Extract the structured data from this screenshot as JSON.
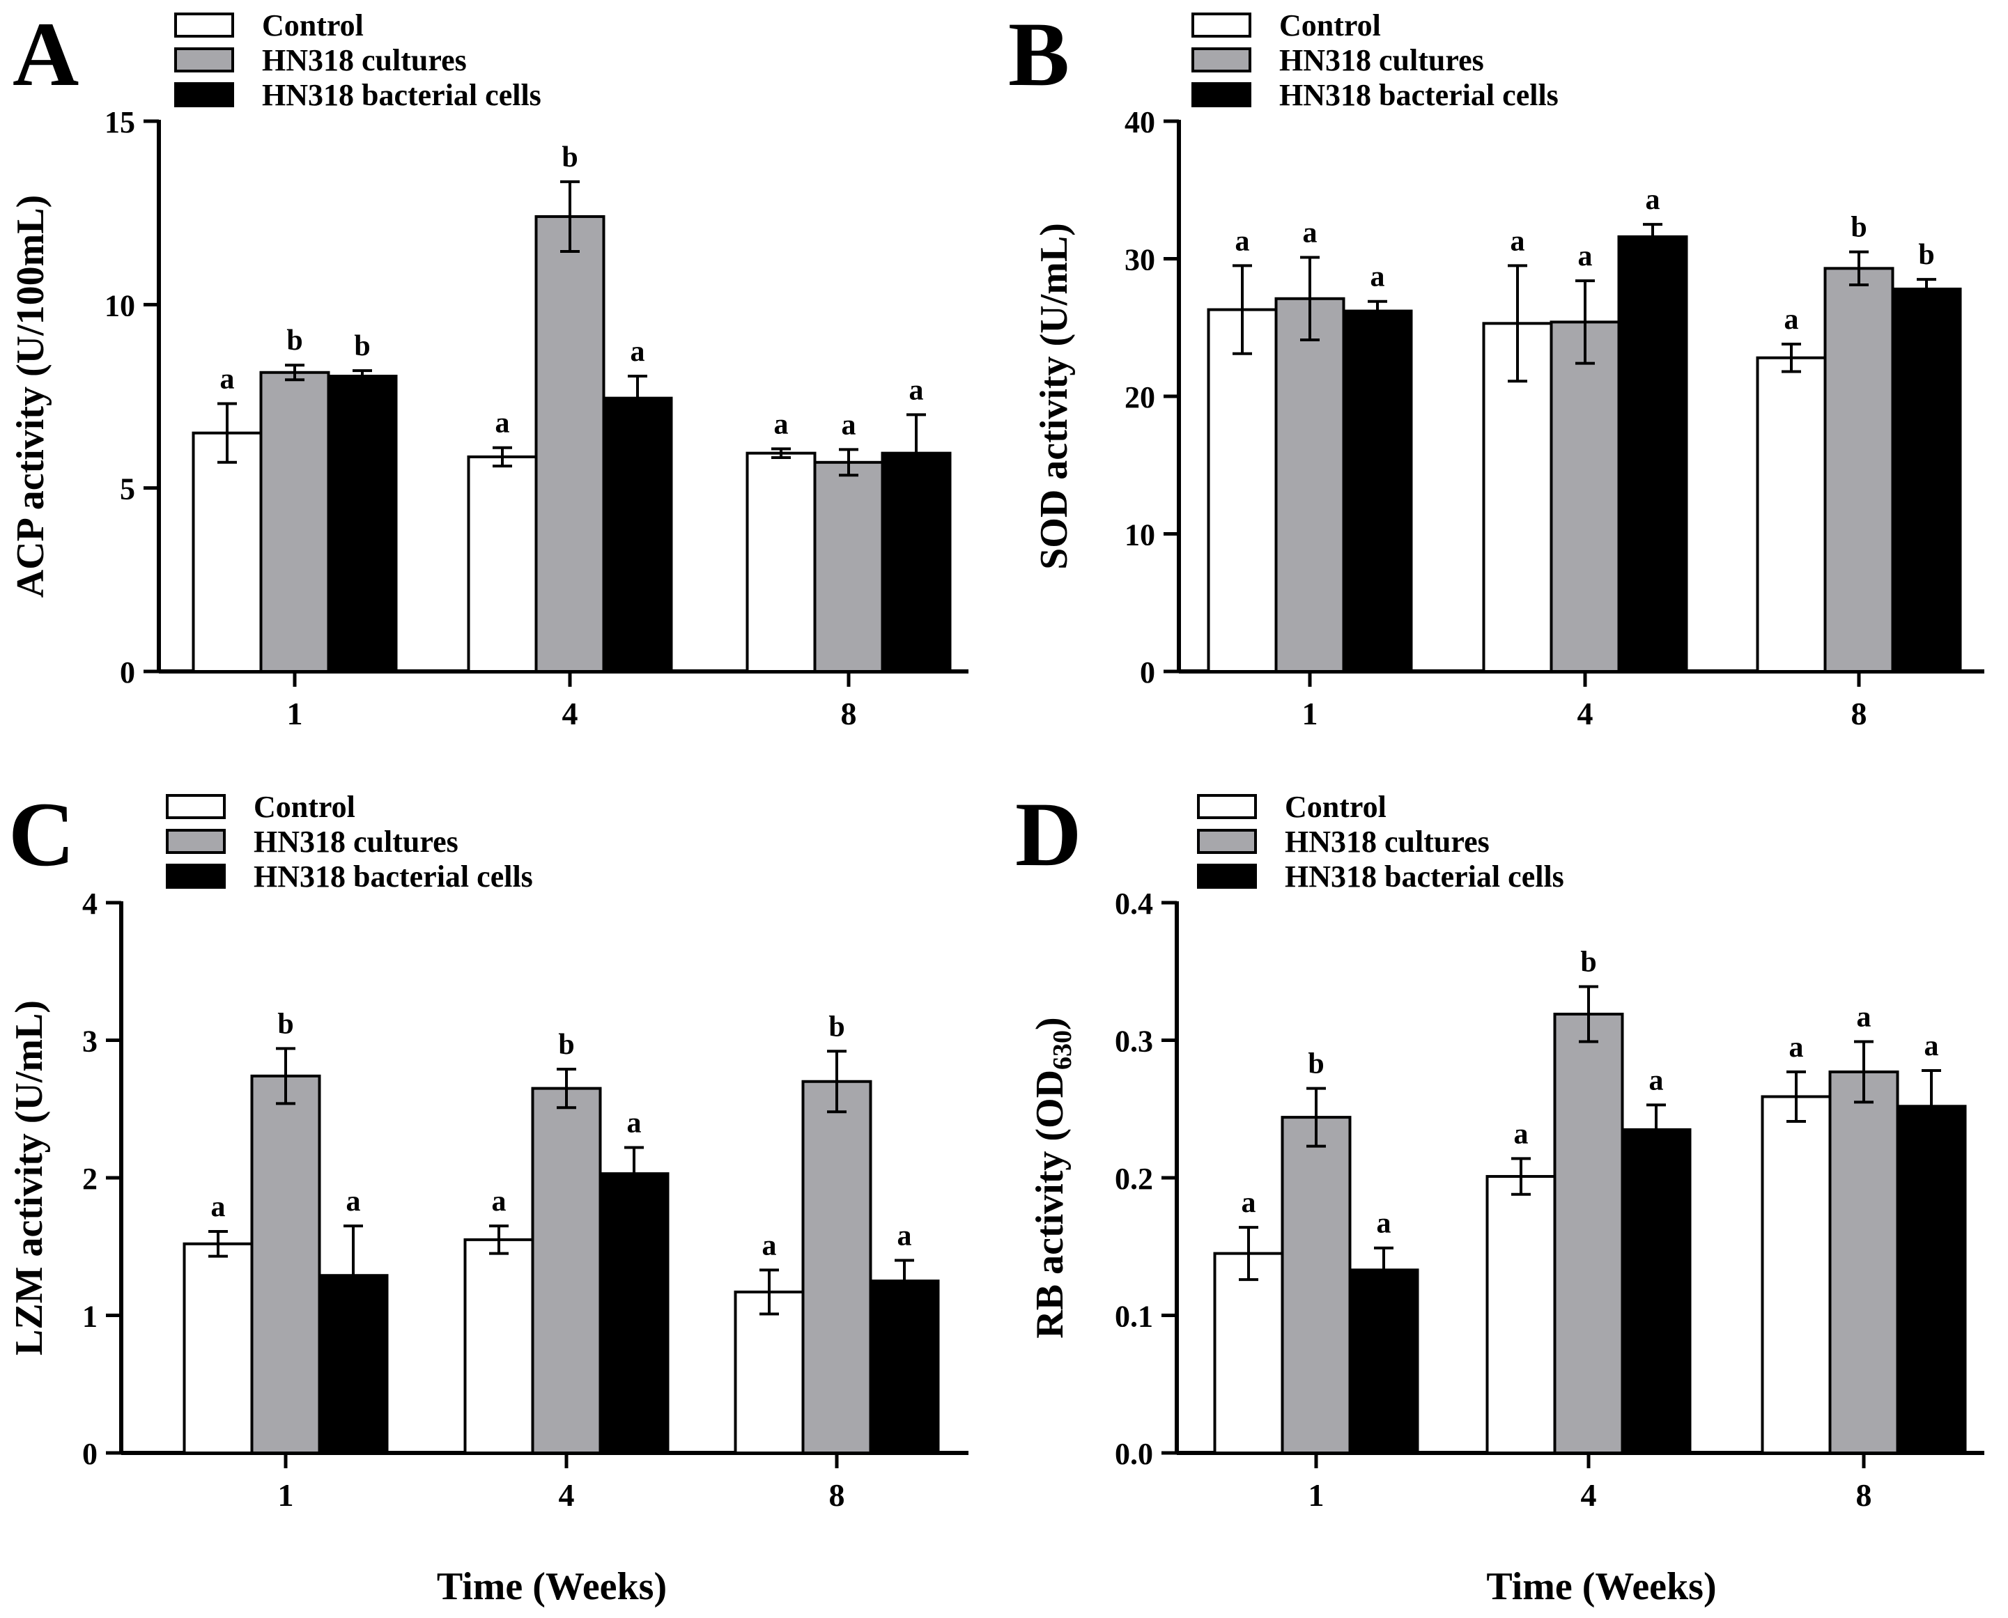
{
  "figure": {
    "xlabel_left": "Time (Weeks)",
    "xlabel_right": "Time (Weeks)"
  },
  "legend": [
    {
      "label": "Control",
      "color": "#ffffff"
    },
    {
      "label": "HN318 cultures",
      "color": "#a7a7ab"
    },
    {
      "label": "HN318 bacterial cells",
      "color": "#000000"
    }
  ],
  "chart_data": [
    {
      "panel": "A",
      "type": "bar",
      "ylabel": "ACP activity (U/100mL)",
      "categories": [
        "1",
        "4",
        "8"
      ],
      "ylim": [
        0,
        15
      ],
      "yticks": [
        "0",
        "5",
        "10",
        "15"
      ],
      "xlabel": "",
      "series": [
        {
          "name": "Control",
          "values": [
            6.5,
            5.85,
            5.95
          ],
          "errors": [
            0.8,
            0.25,
            0.12
          ],
          "letters": [
            "a",
            "a",
            "a"
          ]
        },
        {
          "name": "HN318 cultures",
          "values": [
            8.15,
            12.4,
            5.7
          ],
          "errors": [
            0.2,
            0.95,
            0.35
          ],
          "letters": [
            "b",
            "b",
            "a"
          ]
        },
        {
          "name": "HN318 bacterial cells",
          "values": [
            8.05,
            7.45,
            5.95
          ],
          "errors": [
            0.15,
            0.6,
            1.05
          ],
          "letters": [
            "b",
            "a",
            "a"
          ]
        }
      ]
    },
    {
      "panel": "B",
      "type": "bar",
      "ylabel": "SOD activity (U/mL)",
      "categories": [
        "1",
        "4",
        "8"
      ],
      "ylim": [
        0,
        40
      ],
      "yticks": [
        "0",
        "10",
        "20",
        "30",
        "40"
      ],
      "xlabel": "",
      "series": [
        {
          "name": "Control",
          "values": [
            26.3,
            25.3,
            22.8
          ],
          "errors": [
            3.2,
            4.2,
            1.0
          ],
          "letters": [
            "a",
            "a",
            "a"
          ]
        },
        {
          "name": "HN318 cultures",
          "values": [
            27.1,
            25.4,
            29.3
          ],
          "errors": [
            3.0,
            3.0,
            1.2
          ],
          "letters": [
            "a",
            "a",
            "b"
          ]
        },
        {
          "name": "HN318 bacterial cells",
          "values": [
            26.2,
            31.6,
            27.8
          ],
          "errors": [
            0.7,
            0.9,
            0.7
          ],
          "letters": [
            "a",
            "a",
            "b"
          ]
        }
      ]
    },
    {
      "panel": "C",
      "type": "bar",
      "ylabel": "LZM activity (U/mL)",
      "categories": [
        "1",
        "4",
        "8"
      ],
      "ylim": [
        0,
        4
      ],
      "yticks": [
        "0",
        "1",
        "2",
        "3",
        "4"
      ],
      "xlabel": "Time (Weeks)",
      "series": [
        {
          "name": "Control",
          "values": [
            1.52,
            1.55,
            1.17
          ],
          "errors": [
            0.09,
            0.1,
            0.16
          ],
          "letters": [
            "a",
            "a",
            "a"
          ]
        },
        {
          "name": "HN318 cultures",
          "values": [
            2.74,
            2.65,
            2.7
          ],
          "errors": [
            0.2,
            0.14,
            0.22
          ],
          "letters": [
            "b",
            "b",
            "b"
          ]
        },
        {
          "name": "HN318 bacterial cells",
          "values": [
            1.29,
            2.03,
            1.25
          ],
          "errors": [
            0.36,
            0.19,
            0.15
          ],
          "letters": [
            "a",
            "a",
            "a"
          ]
        }
      ]
    },
    {
      "panel": "D",
      "type": "bar",
      "ylabel": "RB activity (OD",
      "ylabel_subscript": "630",
      "ylabel_suffix": ")",
      "categories": [
        "1",
        "4",
        "8"
      ],
      "ylim": [
        0,
        0.4
      ],
      "yticks": [
        "0.0",
        "0.1",
        "0.2",
        "0.3",
        "0.4"
      ],
      "xlabel": "Time (Weeks)",
      "series": [
        {
          "name": "Control",
          "values": [
            0.145,
            0.201,
            0.259
          ],
          "errors": [
            0.019,
            0.013,
            0.018
          ],
          "letters": [
            "a",
            "a",
            "a"
          ]
        },
        {
          "name": "HN318 cultures",
          "values": [
            0.244,
            0.319,
            0.277
          ],
          "errors": [
            0.021,
            0.02,
            0.022
          ],
          "letters": [
            "b",
            "b",
            "a"
          ]
        },
        {
          "name": "HN318 bacterial cells",
          "values": [
            0.133,
            0.235,
            0.252
          ],
          "errors": [
            0.016,
            0.018,
            0.026
          ],
          "letters": [
            "a",
            "a",
            "a"
          ]
        }
      ]
    }
  ]
}
